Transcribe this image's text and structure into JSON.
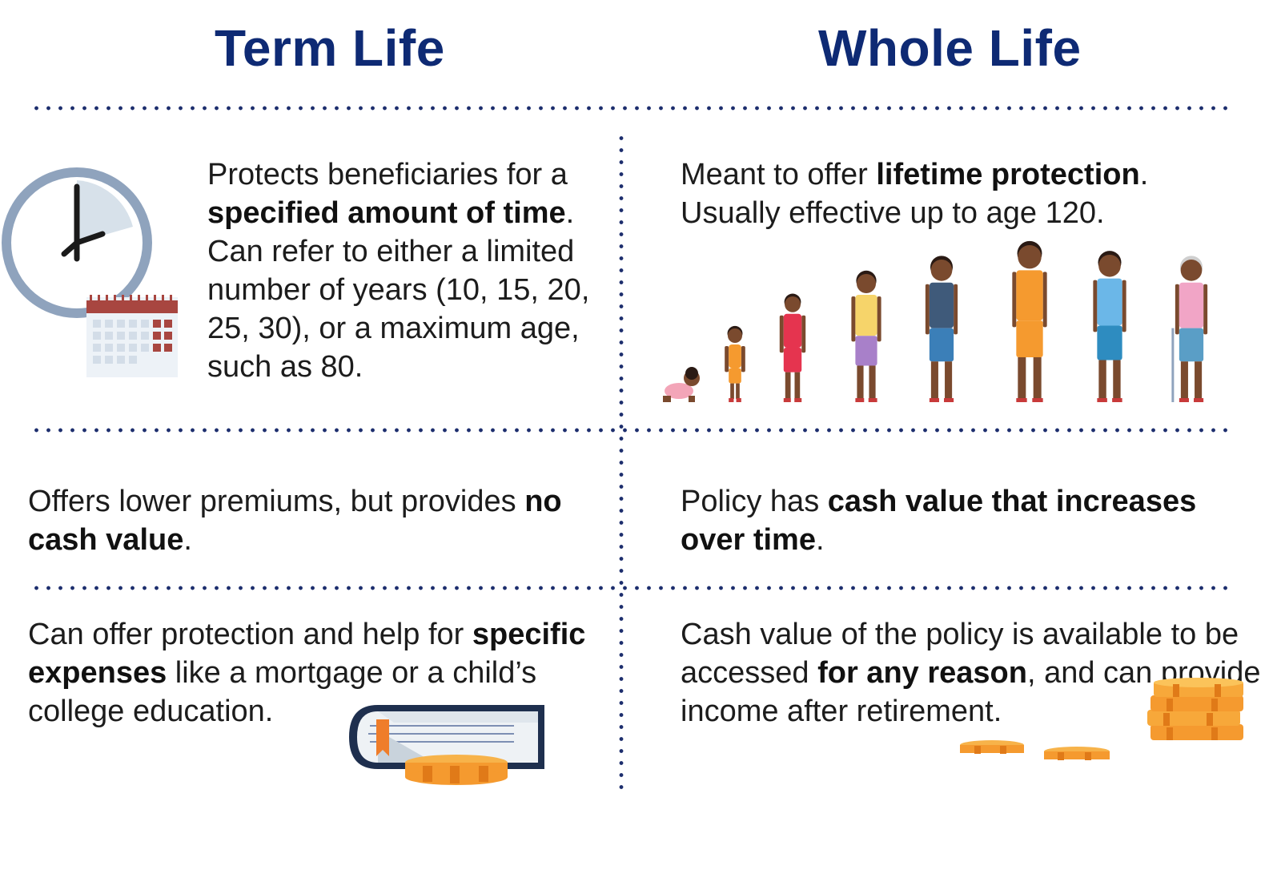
{
  "headings": {
    "term": "Term Life",
    "whole": "Whole Life"
  },
  "term": {
    "row1": [
      {
        "t": "Protects beneficiaries for a "
      },
      {
        "t": "specified amount of time",
        "b": true
      },
      {
        "t": ". Can refer to either a limited number of years (10, 15, 20, 25, 30), or a maximum age, such as 80."
      }
    ],
    "row2": [
      {
        "t": "Offers lower premiums, but provides "
      },
      {
        "t": "no cash value",
        "b": true
      },
      {
        "t": "."
      }
    ],
    "row3": [
      {
        "t": "Can offer protection and help for "
      },
      {
        "t": "specific expenses",
        "b": true
      },
      {
        "t": " like a mortgage or a child’s college education."
      }
    ]
  },
  "whole": {
    "row1": [
      {
        "t": "Meant to offer "
      },
      {
        "t": "lifetime protection",
        "b": true
      },
      {
        "t": ". Usually effective up to age 120."
      }
    ],
    "row2": [
      {
        "t": "Policy has "
      },
      {
        "t": "cash value that increases over time",
        "b": true
      },
      {
        "t": "."
      }
    ],
    "row3": [
      {
        "t": "Cash value of the policy is available to be accessed "
      },
      {
        "t": "for any reason",
        "b": true
      },
      {
        "t": ", and can provide income after retirement."
      }
    ]
  },
  "icons": [
    "clock-icon",
    "calendar-icon",
    "book-icon",
    "coin-icon",
    "coin-stack-icon",
    "life-stages-people-icon"
  ],
  "colors": {
    "heading": "#0e2a74",
    "dots": "#1e2f6e",
    "clock_ring": "#8fa3bd",
    "calendar_header": "#a84640",
    "coin": "#f59a2f",
    "skin": "#7a4a2e"
  }
}
